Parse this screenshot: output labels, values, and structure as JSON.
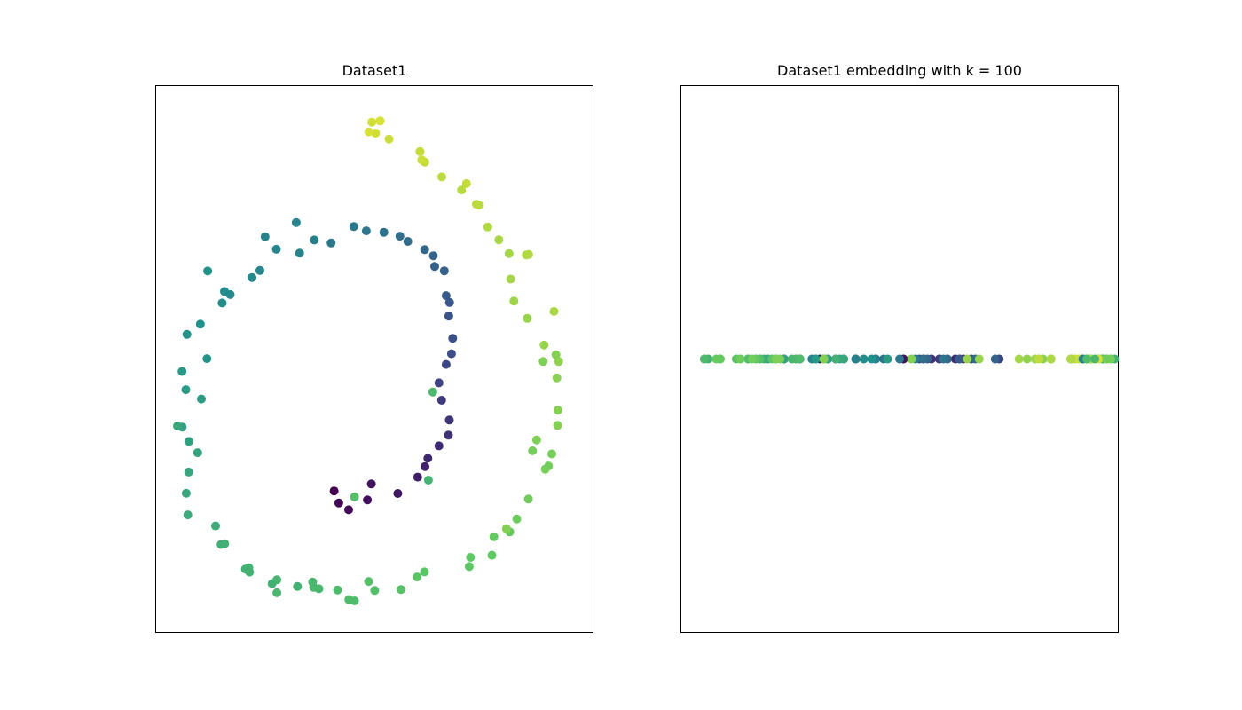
{
  "figure": {
    "panels": [
      {
        "title": "Dataset1"
      },
      {
        "title": "Dataset1 embedding with k = 100"
      }
    ]
  },
  "chart_data": [
    {
      "type": "scatter",
      "title": "Dataset1",
      "xlabel": "",
      "ylabel": "",
      "ticks": "none",
      "colormap": "viridis",
      "grid": false,
      "xlim": [
        -11.5,
        13
      ],
      "ylim": [
        -14.5,
        16
      ],
      "series": [
        {
          "points_sampled": 120,
          "x": [
            -1.5,
            -1.24,
            -0.69,
            0.36,
            0.58,
            2.06,
            3.17,
            3.58,
            3.74,
            4.36,
            4.89,
            4.94,
            4.51,
            4.36,
            4.76,
            5.06,
            5.13,
            4.91,
            4.95,
            4.76,
            4.66,
            4.12,
            4.05,
            3.56,
            2.62,
            2.18,
            1.28,
            0.3,
            -0.4,
            -1.67,
            -2.61,
            -3.43,
            -4.73,
            -5.65,
            -6.09,
            -7.63,
            -7.76,
            -8.98,
            -9.73,
            -8.61,
            -10.0,
            -9.79,
            -8.92,
            -9.99,
            -9.62,
            -9.13,
            -9.63,
            -9.77,
            -9.68,
            -8.13,
            -7.82,
            -7.62,
            -6.46,
            -6.27,
            -4.7,
            -4.7,
            -2.64,
            -1.31,
            -0.68,
            0.77,
            0.43,
            2.24,
            3.14,
            3.55,
            6.05,
            7.32,
            7.43,
            8.32,
            8.71,
            9.36,
            10.3,
            9.59,
            9.82,
            10.99,
            11.01,
            10.95,
            11.05,
            10.24,
            9.3,
            8.55,
            8.37,
            8.28,
            7.71,
            7.09,
            6.59,
            5.62,
            4.52,
            3.57,
            3.3,
            1.57,
            0.82,
            0.61,
            1.07,
            8.13,
            -8.57,
            -10.26,
            -3.62,
            3.77,
            -0.36,
            4.02,
            10.79,
            -4.97,
            -7.31,
            9.37,
            5.9,
            -6.23,
            0.44,
            3.4,
            10.19,
            10.9,
            -3.55,
            10.67,
            6.45,
            10.48,
            -2.35,
            -2.7,
            -5.36,
            6.12,
            -0.36,
            9.24
          ],
          "y": [
            -6.6,
            -7.27,
            -7.65,
            -7.1,
            -6.21,
            -6.74,
            -5.83,
            -5.24,
            -4.78,
            -4.09,
            -3.49,
            -2.65,
            -1.55,
            -0.58,
            0.45,
            1.04,
            1.9,
            3.14,
            3.9,
            4.28,
            5.66,
            5.9,
            6.5,
            6.84,
            7.3,
            7.59,
            7.81,
            7.89,
            8.13,
            7.21,
            7.38,
            6.64,
            6.86,
            5.68,
            5.29,
            4.51,
            3.87,
            2.69,
            2.12,
            0.77,
            0.06,
            -0.96,
            -1.48,
            -3.04,
            -3.84,
            -4.47,
            -5.55,
            -6.73,
            -7.93,
            -8.55,
            -9.58,
            -9.54,
            -10.95,
            -10.88,
            -11.55,
            -12.27,
            -11.97,
            -12.11,
            -12.65,
            -12.14,
            -11.64,
            -12.09,
            -11.39,
            -11.11,
            -10.81,
            -10.18,
            -9.15,
            -8.88,
            -8.16,
            -7.05,
            -5.39,
            -4.36,
            -3.76,
            -2.95,
            -2.1,
            -0.3,
            0.61,
            1.53,
            3.01,
            3.98,
            5.2,
            6.62,
            7.39,
            8.1,
            9.32,
            10.16,
            10.89,
            11.71,
            12.3,
            13.0,
            13.33,
            13.94,
            14.01,
            -8.7,
            5.65,
            -2.98,
            8.35,
            -6.0,
            -6.93,
            -1.09,
            3.4,
            -11.76,
            4.34,
            6.57,
            10.52,
            -11.12,
            13.4,
            11.84,
            0.61,
            0.98,
            -11.92,
            -4.54,
            9.37,
            -5.21,
            -12.05,
            -11.67,
            7.56,
            -10.3,
            -12.72,
            6.55
          ],
          "color_value": [
            0.0,
            0.01,
            0.03,
            0.04,
            0.06,
            0.07,
            0.09,
            0.1,
            0.12,
            0.13,
            0.15,
            0.16,
            0.18,
            0.2,
            0.21,
            0.23,
            0.24,
            0.25,
            0.27,
            0.28,
            0.3,
            0.31,
            0.32,
            0.34,
            0.35,
            0.36,
            0.38,
            0.39,
            0.4,
            0.41,
            0.43,
            0.44,
            0.45,
            0.46,
            0.47,
            0.48,
            0.49,
            0.5,
            0.51,
            0.52,
            0.53,
            0.54,
            0.55,
            0.56,
            0.57,
            0.58,
            0.59,
            0.6,
            0.61,
            0.62,
            0.63,
            0.64,
            0.64,
            0.65,
            0.66,
            0.67,
            0.68,
            0.69,
            0.69,
            0.7,
            0.71,
            0.72,
            0.73,
            0.73,
            0.74,
            0.75,
            0.76,
            0.76,
            0.77,
            0.78,
            0.79,
            0.79,
            0.8,
            0.81,
            0.81,
            0.82,
            0.83,
            0.84,
            0.84,
            0.85,
            0.86,
            0.86,
            0.87,
            0.88,
            0.89,
            0.89,
            0.9,
            0.91,
            0.91,
            0.92,
            0.93,
            0.93,
            0.94,
            0.81,
            0.51,
            0.6,
            0.45,
            0.65,
            0.71,
            0.68,
            0.87,
            0.64,
            0.47,
            0.88,
            0.91,
            0.64,
            0.94,
            0.92,
            0.8,
            0.81,
            0.64,
            0.79,
            0.9,
            0.78,
            0.67,
            0.67,
            0.44,
            0.75,
            0.69,
            0.88
          ]
        }
      ]
    },
    {
      "type": "scatter",
      "title": "Dataset1 embedding with k = 100",
      "xlabel": "",
      "ylabel": "",
      "ticks": "none",
      "colormap": "viridis",
      "grid": false,
      "xlim": [
        -0.055,
        0.055
      ],
      "ylim": [
        -0.055,
        0.055
      ],
      "series": [
        {
          "points_sampled": 120,
          "x": [
            -0.029,
            -0.016,
            -0.006,
            -0.019,
            0.001,
            -0.02,
            -0.011,
            -0.025,
            0.016,
            0.014,
            0.008,
            0.01,
            0.01,
            0.025,
            0.018,
            0.006,
            0.005,
            0.015,
            -0.014,
            0.015,
            0.012,
            0.007,
            0.024,
            0.012,
            0.019,
            0.006,
            0.011,
            -0.004,
            0.0,
            0.004,
            -0.006,
            -0.011,
            -0.022,
            -0.019,
            -0.019,
            -0.021,
            -0.009,
            -0.007,
            -0.031,
            -0.038,
            -0.021,
            -0.003,
            -0.018,
            -0.018,
            -0.015,
            -0.029,
            -0.033,
            -0.014,
            -0.036,
            -0.034,
            -0.026,
            -0.016,
            -0.048,
            -0.049,
            -0.027,
            -0.026,
            -0.049,
            -0.025,
            -0.035,
            -0.038,
            -0.035,
            -0.045,
            -0.04,
            -0.041,
            -0.032,
            -0.036,
            -0.045,
            -0.046,
            -0.04,
            -0.037,
            -0.03,
            -0.019,
            -0.031,
            0.003,
            -0.019,
            0.036,
            0.032,
            0.02,
            0.017,
            0.034,
            0.03,
            0.038,
            0.038,
            0.046,
            0.047,
            0.035,
            0.035,
            0.044,
            0.048,
            0.044,
            0.044,
            0.044,
            0.047,
            0.051,
            0.051,
            0.051,
            0.048,
            0.053,
            0.051,
            0.046,
            0.047,
            0.048,
            0.05,
            0.048,
            0.052,
            0.054,
            0.05,
            0.045,
            0.047,
            0.053,
            0.052,
            0.053,
            0.047,
            0.052,
            0.049,
            0.043,
            0.046,
            0.043,
            0.047,
            0.043
          ],
          "y": [
            0,
            0,
            0,
            0,
            0,
            0,
            0,
            0,
            0,
            0,
            0,
            0,
            0,
            0,
            0,
            0,
            0,
            0,
            0,
            0,
            0,
            0,
            0,
            0,
            0,
            0,
            0,
            0,
            0,
            0,
            0,
            0,
            0,
            0,
            0,
            0,
            0,
            0,
            0,
            0,
            0,
            0,
            0,
            0,
            0,
            0,
            0,
            0,
            0,
            0,
            0,
            0,
            0,
            0,
            0,
            0,
            0,
            0,
            0,
            0,
            0,
            0,
            0,
            0,
            0,
            0,
            0,
            0,
            0,
            0,
            0,
            0,
            0,
            0,
            0,
            0,
            0,
            0,
            0,
            0,
            0,
            0,
            0,
            0,
            0,
            0,
            0,
            0,
            0,
            0,
            0,
            0,
            0,
            0,
            0,
            0,
            0,
            0,
            0,
            0,
            0,
            0,
            0,
            0,
            0,
            0,
            0,
            0,
            0,
            0,
            0,
            0,
            0,
            0,
            0,
            0,
            0,
            0,
            0,
            0
          ],
          "color_value": [
            0.0,
            0.01,
            0.03,
            0.04,
            0.06,
            0.07,
            0.09,
            0.1,
            0.12,
            0.13,
            0.15,
            0.16,
            0.18,
            0.2,
            0.21,
            0.23,
            0.24,
            0.25,
            0.27,
            0.28,
            0.3,
            0.31,
            0.32,
            0.34,
            0.35,
            0.36,
            0.38,
            0.39,
            0.4,
            0.41,
            0.43,
            0.44,
            0.45,
            0.46,
            0.47,
            0.48,
            0.49,
            0.5,
            0.51,
            0.52,
            0.53,
            0.54,
            0.55,
            0.56,
            0.57,
            0.58,
            0.59,
            0.6,
            0.61,
            0.62,
            0.63,
            0.64,
            0.64,
            0.65,
            0.66,
            0.67,
            0.68,
            0.69,
            0.69,
            0.7,
            0.71,
            0.72,
            0.73,
            0.73,
            0.74,
            0.75,
            0.76,
            0.76,
            0.77,
            0.78,
            0.79,
            0.79,
            0.8,
            0.81,
            0.81,
            0.82,
            0.83,
            0.84,
            0.84,
            0.85,
            0.86,
            0.86,
            0.87,
            0.88,
            0.89,
            0.89,
            0.9,
            0.91,
            0.91,
            0.92,
            0.93,
            0.93,
            0.94,
            0.81,
            0.51,
            0.6,
            0.45,
            0.65,
            0.71,
            0.68,
            0.87,
            0.64,
            0.47,
            0.88,
            0.91,
            0.64,
            0.94,
            0.92,
            0.8,
            0.81,
            0.64,
            0.79,
            0.9,
            0.78,
            0.67,
            0.67,
            0.44,
            0.75,
            0.69,
            0.88
          ]
        }
      ]
    }
  ]
}
